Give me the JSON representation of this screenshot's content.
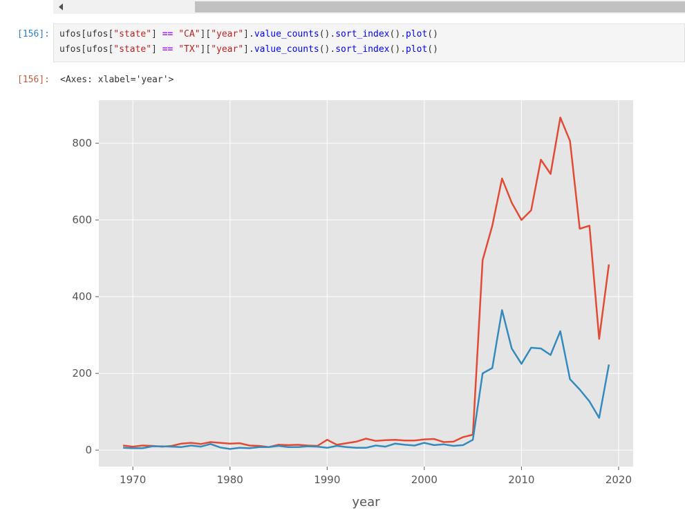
{
  "notebook": {
    "input_prompt": "[156]:",
    "output_prompt": "[156]:",
    "code_lines": [
      [
        {
          "t": "ufos[ufos[",
          "c": ""
        },
        {
          "t": "\"state\"",
          "c": "str"
        },
        {
          "t": "] ",
          "c": ""
        },
        {
          "t": "==",
          "c": "op"
        },
        {
          "t": " ",
          "c": ""
        },
        {
          "t": "\"CA\"",
          "c": "str"
        },
        {
          "t": "][",
          "c": ""
        },
        {
          "t": "\"year\"",
          "c": "str"
        },
        {
          "t": "].",
          "c": ""
        },
        {
          "t": "value_counts",
          "c": "fn"
        },
        {
          "t": "().",
          "c": ""
        },
        {
          "t": "sort_index",
          "c": "fn"
        },
        {
          "t": "().",
          "c": ""
        },
        {
          "t": "plot",
          "c": "fn"
        },
        {
          "t": "()",
          "c": ""
        }
      ],
      [
        {
          "t": "ufos[ufos[",
          "c": ""
        },
        {
          "t": "\"state\"",
          "c": "str"
        },
        {
          "t": "] ",
          "c": ""
        },
        {
          "t": "==",
          "c": "op"
        },
        {
          "t": " ",
          "c": ""
        },
        {
          "t": "\"TX\"",
          "c": "str"
        },
        {
          "t": "][",
          "c": ""
        },
        {
          "t": "\"year\"",
          "c": "str"
        },
        {
          "t": "].",
          "c": ""
        },
        {
          "t": "value_counts",
          "c": "fn"
        },
        {
          "t": "().",
          "c": ""
        },
        {
          "t": "sort_index",
          "c": "fn"
        },
        {
          "t": "().",
          "c": ""
        },
        {
          "t": "plot",
          "c": "fn"
        },
        {
          "t": "()",
          "c": ""
        }
      ]
    ],
    "output_text": "<Axes: xlabel='year'>"
  },
  "chart_data": {
    "type": "line",
    "title": "",
    "xlabel": "year",
    "ylabel": "",
    "xlim": [
      1966.5,
      2021.5
    ],
    "ylim": [
      -43,
      912
    ],
    "xticks": [
      1970,
      1980,
      1990,
      2000,
      2010,
      2020
    ],
    "yticks": [
      0,
      200,
      400,
      600,
      800
    ],
    "grid": true,
    "colors": {
      "axes_bg": "#e5e5e5",
      "grid": "#ffffff",
      "tick_label": "#555555"
    },
    "series": [
      {
        "color": "#e24a33",
        "x": [
          1969,
          1970,
          1971,
          1972,
          1973,
          1974,
          1975,
          1976,
          1977,
          1978,
          1979,
          1980,
          1981,
          1982,
          1983,
          1984,
          1985,
          1986,
          1987,
          1988,
          1989,
          1990,
          1991,
          1992,
          1993,
          1994,
          1995,
          1996,
          1997,
          1998,
          1999,
          2000,
          2001,
          2002,
          2003,
          2004,
          2005,
          2006,
          2007,
          2008,
          2009,
          2010,
          2011,
          2012,
          2013,
          2014,
          2015,
          2016,
          2017,
          2018,
          2019
        ],
        "values": [
          12,
          9,
          12,
          11,
          9,
          11,
          17,
          19,
          16,
          21,
          19,
          17,
          18,
          12,
          11,
          8,
          14,
          13,
          14,
          12,
          11,
          27,
          14,
          18,
          22,
          30,
          24,
          26,
          27,
          25,
          25,
          28,
          29,
          21,
          22,
          34,
          40,
          495,
          585,
          708,
          645,
          600,
          625,
          757,
          720,
          867,
          806,
          577,
          585,
          290,
          484
        ]
      },
      {
        "color": "#348abd",
        "x": [
          1969,
          1970,
          1971,
          1972,
          1973,
          1974,
          1975,
          1976,
          1977,
          1978,
          1979,
          1980,
          1981,
          1982,
          1983,
          1984,
          1985,
          1986,
          1987,
          1988,
          1989,
          1990,
          1991,
          1992,
          1993,
          1994,
          1995,
          1996,
          1997,
          1998,
          1999,
          2000,
          2001,
          2002,
          2003,
          2004,
          2005,
          2006,
          2007,
          2008,
          2009,
          2010,
          2011,
          2012,
          2013,
          2014,
          2015,
          2016,
          2017,
          2018,
          2019
        ],
        "values": [
          6,
          5,
          5,
          10,
          10,
          9,
          8,
          12,
          9,
          16,
          7,
          3,
          6,
          5,
          8,
          8,
          11,
          8,
          8,
          10,
          9,
          6,
          11,
          8,
          6,
          6,
          12,
          9,
          17,
          14,
          12,
          19,
          13,
          15,
          11,
          13,
          27,
          200,
          214,
          365,
          265,
          225,
          267,
          265,
          248,
          310,
          185,
          158,
          127,
          84,
          223
        ]
      }
    ]
  }
}
